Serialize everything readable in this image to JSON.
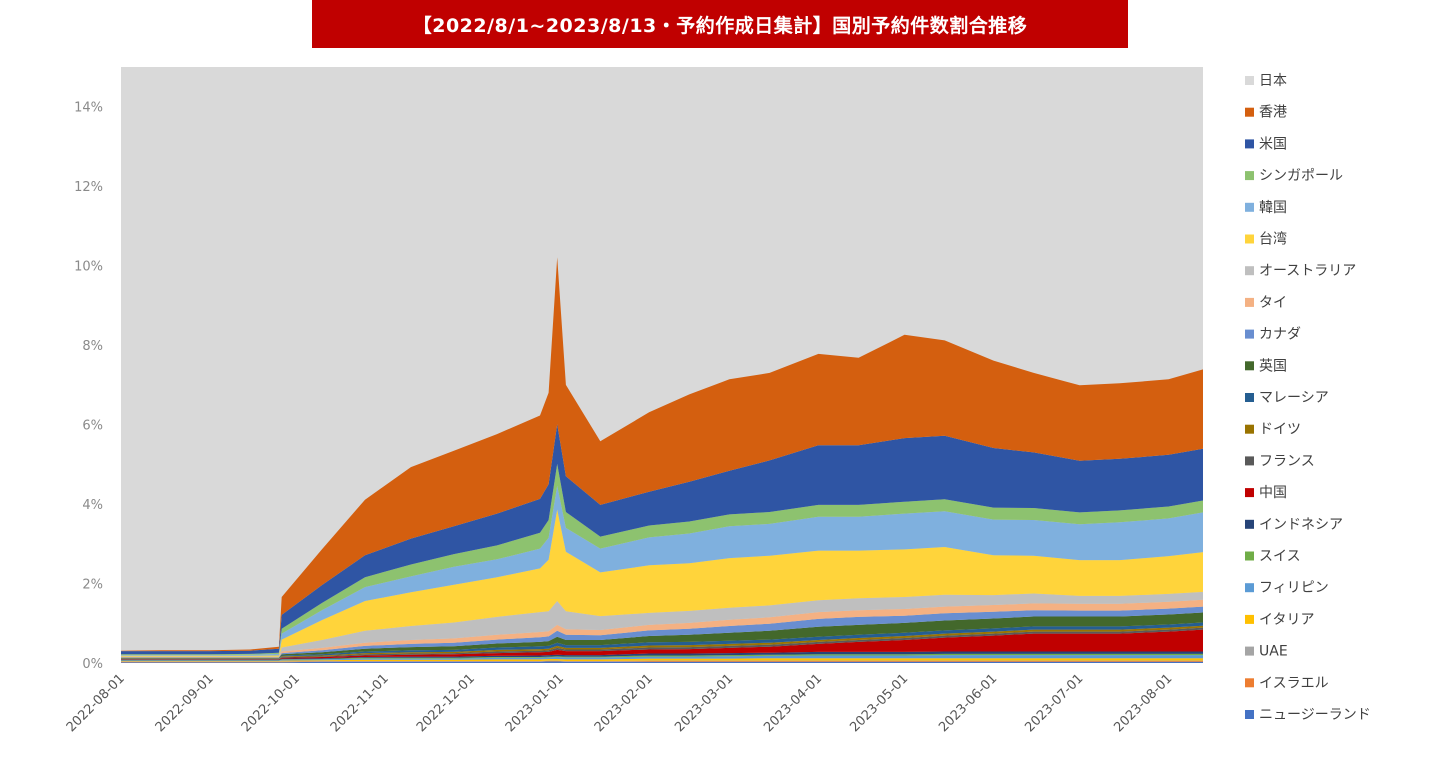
{
  "chart_data": {
    "type": "area",
    "title": "【2022/8/1~2023/8/13・予約作成日集計】国別予約件数割合推移",
    "xlabel": "",
    "ylabel": "",
    "ylim": [
      0,
      15
    ],
    "y_unit": "%",
    "y_ticks": [
      0,
      2,
      4,
      6,
      8,
      10,
      12,
      14
    ],
    "y_tick_labels": [
      "0%",
      "2%",
      "4%",
      "6%",
      "8%",
      "10%",
      "12%",
      "14%"
    ],
    "x_range": [
      "2022-08-01",
      "2023-08-13"
    ],
    "x_ticks": [
      "2022-08-01",
      "2022-09-01",
      "2022-10-01",
      "2022-11-01",
      "2022-12-01",
      "2023-01-01",
      "2023-02-01",
      "2023-03-01",
      "2023-04-01",
      "2023-05-01",
      "2023-06-01",
      "2023-07-01",
      "2023-08-01"
    ],
    "grid": false,
    "background_series": {
      "name": "日本",
      "color": "#d9d9d9",
      "note_fill": "remainder to top"
    },
    "legend_position": "right",
    "dates": [
      "2022-08-01",
      "2022-08-15",
      "2022-09-01",
      "2022-09-15",
      "2022-09-25",
      "2022-09-26",
      "2022-10-10",
      "2022-10-25",
      "2022-11-10",
      "2022-11-25",
      "2022-12-10",
      "2022-12-25",
      "2022-12-28",
      "2022-12-31",
      "2023-01-03",
      "2023-01-15",
      "2023-02-01",
      "2023-02-15",
      "2023-03-01",
      "2023-03-15",
      "2023-04-01",
      "2023-04-15",
      "2023-05-01",
      "2023-05-15",
      "2023-06-01",
      "2023-06-15",
      "2023-07-01",
      "2023-07-15",
      "2023-08-01",
      "2023-08-13"
    ],
    "series": [
      {
        "name": "ニュージーランド",
        "color": "#4472c4",
        "values": [
          0.02,
          0.02,
          0.02,
          0.02,
          0.02,
          0.02,
          0.03,
          0.03,
          0.03,
          0.03,
          0.03,
          0.03,
          0.04,
          0.04,
          0.03,
          0.03,
          0.03,
          0.03,
          0.03,
          0.03,
          0.03,
          0.03,
          0.03,
          0.03,
          0.03,
          0.03,
          0.03,
          0.03,
          0.03,
          0.03
        ]
      },
      {
        "name": "イスラエル",
        "color": "#ed7d31",
        "values": [
          0.01,
          0.01,
          0.01,
          0.01,
          0.01,
          0.01,
          0.01,
          0.01,
          0.01,
          0.01,
          0.01,
          0.01,
          0.01,
          0.01,
          0.01,
          0.01,
          0.02,
          0.02,
          0.02,
          0.02,
          0.02,
          0.02,
          0.02,
          0.02,
          0.02,
          0.02,
          0.02,
          0.02,
          0.02,
          0.02
        ]
      },
      {
        "name": "UAE",
        "color": "#a5a5a5",
        "values": [
          0.01,
          0.01,
          0.01,
          0.01,
          0.01,
          0.01,
          0.01,
          0.01,
          0.01,
          0.01,
          0.01,
          0.01,
          0.01,
          0.01,
          0.01,
          0.01,
          0.01,
          0.01,
          0.01,
          0.01,
          0.01,
          0.01,
          0.01,
          0.01,
          0.01,
          0.01,
          0.01,
          0.01,
          0.01,
          0.01
        ]
      },
      {
        "name": "イタリア",
        "color": "#ffc000",
        "values": [
          0.01,
          0.01,
          0.01,
          0.01,
          0.01,
          0.02,
          0.02,
          0.03,
          0.03,
          0.03,
          0.04,
          0.04,
          0.04,
          0.04,
          0.04,
          0.04,
          0.05,
          0.05,
          0.05,
          0.06,
          0.06,
          0.06,
          0.06,
          0.06,
          0.06,
          0.06,
          0.06,
          0.06,
          0.06,
          0.06
        ]
      },
      {
        "name": "フィリピン",
        "color": "#5b9bd5",
        "values": [
          0.01,
          0.01,
          0.01,
          0.01,
          0.01,
          0.02,
          0.02,
          0.03,
          0.03,
          0.03,
          0.04,
          0.04,
          0.04,
          0.05,
          0.05,
          0.05,
          0.05,
          0.05,
          0.06,
          0.06,
          0.07,
          0.07,
          0.07,
          0.08,
          0.08,
          0.08,
          0.08,
          0.08,
          0.08,
          0.08
        ]
      },
      {
        "name": "スイス",
        "color": "#70ad47",
        "values": [
          0.01,
          0.01,
          0.01,
          0.01,
          0.01,
          0.01,
          0.01,
          0.02,
          0.02,
          0.02,
          0.02,
          0.02,
          0.02,
          0.02,
          0.02,
          0.02,
          0.03,
          0.03,
          0.03,
          0.03,
          0.03,
          0.03,
          0.03,
          0.03,
          0.03,
          0.03,
          0.03,
          0.03,
          0.03,
          0.03
        ]
      },
      {
        "name": "インドネシア",
        "color": "#264478",
        "values": [
          0.01,
          0.01,
          0.01,
          0.01,
          0.01,
          0.02,
          0.02,
          0.02,
          0.03,
          0.03,
          0.03,
          0.04,
          0.04,
          0.04,
          0.04,
          0.04,
          0.05,
          0.05,
          0.05,
          0.05,
          0.06,
          0.06,
          0.06,
          0.06,
          0.06,
          0.06,
          0.06,
          0.06,
          0.06,
          0.06
        ]
      },
      {
        "name": "中国",
        "color": "#c00000",
        "values": [
          0.01,
          0.01,
          0.01,
          0.01,
          0.01,
          0.02,
          0.03,
          0.04,
          0.05,
          0.06,
          0.07,
          0.08,
          0.08,
          0.12,
          0.1,
          0.1,
          0.1,
          0.11,
          0.13,
          0.15,
          0.2,
          0.25,
          0.3,
          0.35,
          0.4,
          0.45,
          0.45,
          0.45,
          0.5,
          0.55
        ]
      },
      {
        "name": "フランス",
        "color": "#595959",
        "values": [
          0.01,
          0.01,
          0.01,
          0.01,
          0.01,
          0.02,
          0.02,
          0.03,
          0.03,
          0.03,
          0.04,
          0.04,
          0.04,
          0.05,
          0.04,
          0.04,
          0.05,
          0.05,
          0.05,
          0.05,
          0.05,
          0.05,
          0.05,
          0.05,
          0.05,
          0.05,
          0.05,
          0.05,
          0.05,
          0.05
        ]
      },
      {
        "name": "ドイツ",
        "color": "#997300",
        "values": [
          0.01,
          0.01,
          0.01,
          0.01,
          0.01,
          0.02,
          0.02,
          0.03,
          0.03,
          0.03,
          0.04,
          0.04,
          0.04,
          0.05,
          0.04,
          0.04,
          0.05,
          0.05,
          0.05,
          0.05,
          0.05,
          0.05,
          0.05,
          0.05,
          0.05,
          0.05,
          0.05,
          0.05,
          0.05,
          0.05
        ]
      },
      {
        "name": "マレーシア",
        "color": "#255e91",
        "values": [
          0.01,
          0.01,
          0.01,
          0.01,
          0.01,
          0.02,
          0.03,
          0.04,
          0.05,
          0.05,
          0.06,
          0.07,
          0.07,
          0.08,
          0.07,
          0.07,
          0.08,
          0.08,
          0.08,
          0.08,
          0.08,
          0.08,
          0.08,
          0.08,
          0.08,
          0.08,
          0.08,
          0.08,
          0.08,
          0.08
        ]
      },
      {
        "name": "英国",
        "color": "#43682b",
        "values": [
          0.01,
          0.01,
          0.01,
          0.01,
          0.01,
          0.03,
          0.05,
          0.07,
          0.08,
          0.09,
          0.1,
          0.11,
          0.12,
          0.15,
          0.13,
          0.13,
          0.16,
          0.18,
          0.2,
          0.22,
          0.25,
          0.25,
          0.25,
          0.25,
          0.25,
          0.25,
          0.25,
          0.25,
          0.25,
          0.25
        ]
      },
      {
        "name": "カナダ",
        "color": "#698ed0",
        "values": [
          0.01,
          0.01,
          0.01,
          0.01,
          0.01,
          0.03,
          0.05,
          0.07,
          0.08,
          0.09,
          0.1,
          0.12,
          0.12,
          0.15,
          0.13,
          0.12,
          0.14,
          0.15,
          0.17,
          0.18,
          0.2,
          0.2,
          0.18,
          0.18,
          0.17,
          0.16,
          0.15,
          0.15,
          0.15,
          0.15
        ]
      },
      {
        "name": "タイ",
        "color": "#f4b183",
        "values": [
          0.01,
          0.01,
          0.01,
          0.01,
          0.01,
          0.04,
          0.06,
          0.08,
          0.1,
          0.11,
          0.12,
          0.13,
          0.13,
          0.15,
          0.14,
          0.13,
          0.14,
          0.15,
          0.16,
          0.16,
          0.17,
          0.17,
          0.17,
          0.17,
          0.17,
          0.17,
          0.17,
          0.17,
          0.17,
          0.17
        ]
      },
      {
        "name": "オーストラリア",
        "color": "#bfbfbf",
        "values": [
          0.01,
          0.01,
          0.01,
          0.01,
          0.01,
          0.1,
          0.2,
          0.3,
          0.35,
          0.4,
          0.45,
          0.5,
          0.5,
          0.6,
          0.45,
          0.35,
          0.3,
          0.3,
          0.3,
          0.3,
          0.3,
          0.3,
          0.3,
          0.3,
          0.25,
          0.25,
          0.2,
          0.2,
          0.2,
          0.2
        ]
      },
      {
        "name": "台湾",
        "color": "#ffd43b",
        "values": [
          0.02,
          0.02,
          0.02,
          0.02,
          0.03,
          0.2,
          0.5,
          0.75,
          0.85,
          0.95,
          1.0,
          1.1,
          1.3,
          2.3,
          1.5,
          1.1,
          1.2,
          1.2,
          1.25,
          1.25,
          1.25,
          1.2,
          1.2,
          1.2,
          1.0,
          0.95,
          0.9,
          0.9,
          0.95,
          1.0
        ]
      },
      {
        "name": "韓国",
        "color": "#7fb0de",
        "values": [
          0.02,
          0.02,
          0.02,
          0.03,
          0.04,
          0.15,
          0.25,
          0.35,
          0.4,
          0.45,
          0.45,
          0.5,
          0.55,
          0.6,
          0.6,
          0.6,
          0.7,
          0.75,
          0.8,
          0.8,
          0.85,
          0.85,
          0.9,
          0.9,
          0.9,
          0.9,
          0.9,
          0.95,
          0.95,
          1.0
        ]
      },
      {
        "name": "シンガポール",
        "color": "#8dc26f",
        "values": [
          0.02,
          0.02,
          0.02,
          0.02,
          0.03,
          0.12,
          0.18,
          0.25,
          0.3,
          0.32,
          0.35,
          0.4,
          0.45,
          0.55,
          0.4,
          0.3,
          0.3,
          0.3,
          0.3,
          0.3,
          0.3,
          0.3,
          0.3,
          0.3,
          0.3,
          0.3,
          0.3,
          0.3,
          0.3,
          0.3
        ]
      },
      {
        "name": "米国",
        "color": "#2f55a4",
        "values": [
          0.08,
          0.08,
          0.08,
          0.08,
          0.1,
          0.35,
          0.45,
          0.55,
          0.65,
          0.7,
          0.8,
          0.85,
          0.9,
          1.0,
          0.9,
          0.8,
          0.85,
          1.0,
          1.1,
          1.3,
          1.5,
          1.5,
          1.6,
          1.6,
          1.5,
          1.4,
          1.3,
          1.3,
          1.3,
          1.3
        ]
      },
      {
        "name": "香港",
        "color": "#d45f0f",
        "values": [
          0.01,
          0.02,
          0.02,
          0.03,
          0.05,
          0.45,
          0.9,
          1.4,
          1.8,
          1.9,
          2.0,
          2.1,
          2.3,
          4.2,
          2.3,
          1.6,
          2.0,
          2.2,
          2.3,
          2.2,
          2.3,
          2.2,
          2.6,
          2.4,
          2.2,
          2.0,
          1.9,
          1.9,
          1.9,
          2.0
        ]
      }
    ],
    "legend": [
      "日本",
      "香港",
      "米国",
      "シンガポール",
      "韓国",
      "台湾",
      "オーストラリア",
      "タイ",
      "カナダ",
      "英国",
      "マレーシア",
      "ドイツ",
      "フランス",
      "中国",
      "インドネシア",
      "スイス",
      "フィリピン",
      "イタリア",
      "UAE",
      "イスラエル",
      "ニュージーランド"
    ],
    "legend_colors": {
      "日本": "#d9d9d9",
      "香港": "#d45f0f",
      "米国": "#2f55a4",
      "シンガポール": "#8dc26f",
      "韓国": "#7fb0de",
      "台湾": "#ffd43b",
      "オーストラリア": "#bfbfbf",
      "タイ": "#f4b183",
      "カナダ": "#698ed0",
      "英国": "#43682b",
      "マレーシア": "#255e91",
      "ドイツ": "#997300",
      "フランス": "#595959",
      "中国": "#c00000",
      "インドネシア": "#264478",
      "スイス": "#70ad47",
      "フィリピン": "#5b9bd5",
      "イタリア": "#ffc000",
      "UAE": "#a5a5a5",
      "イスラエル": "#ed7d31",
      "ニュージーランド": "#4472c4"
    }
  }
}
